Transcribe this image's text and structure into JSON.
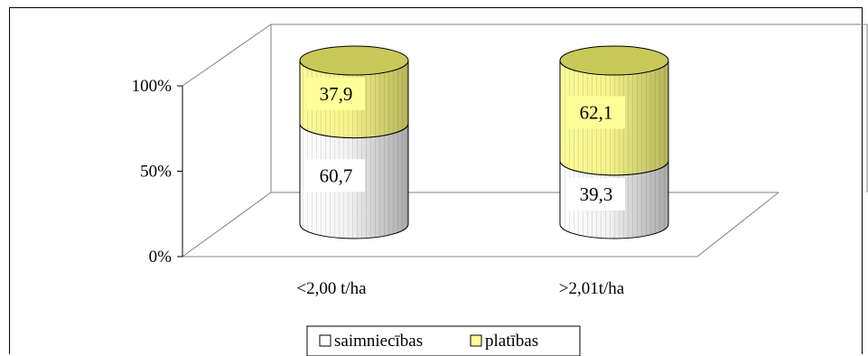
{
  "chart_data": {
    "type": "bar",
    "stacked": "percent",
    "style": "3d-cylinder",
    "title": "",
    "xlabel": "",
    "ylabel": "",
    "ylim": [
      0,
      100
    ],
    "yticks": [
      "0%",
      "50%",
      "100%"
    ],
    "categories": [
      "<2,00 t/ha",
      ">2,01t/ha"
    ],
    "series": [
      {
        "name": "saimniecības",
        "values": [
          60.7,
          39.3
        ],
        "labels": [
          "60,7",
          "39,3"
        ],
        "color": "#ffffff"
      },
      {
        "name": "platības",
        "values": [
          37.9,
          62.1
        ],
        "labels": [
          "37,9",
          "62,1"
        ],
        "color": "#ffff99"
      }
    ],
    "legend_position": "bottom",
    "grid": false
  }
}
